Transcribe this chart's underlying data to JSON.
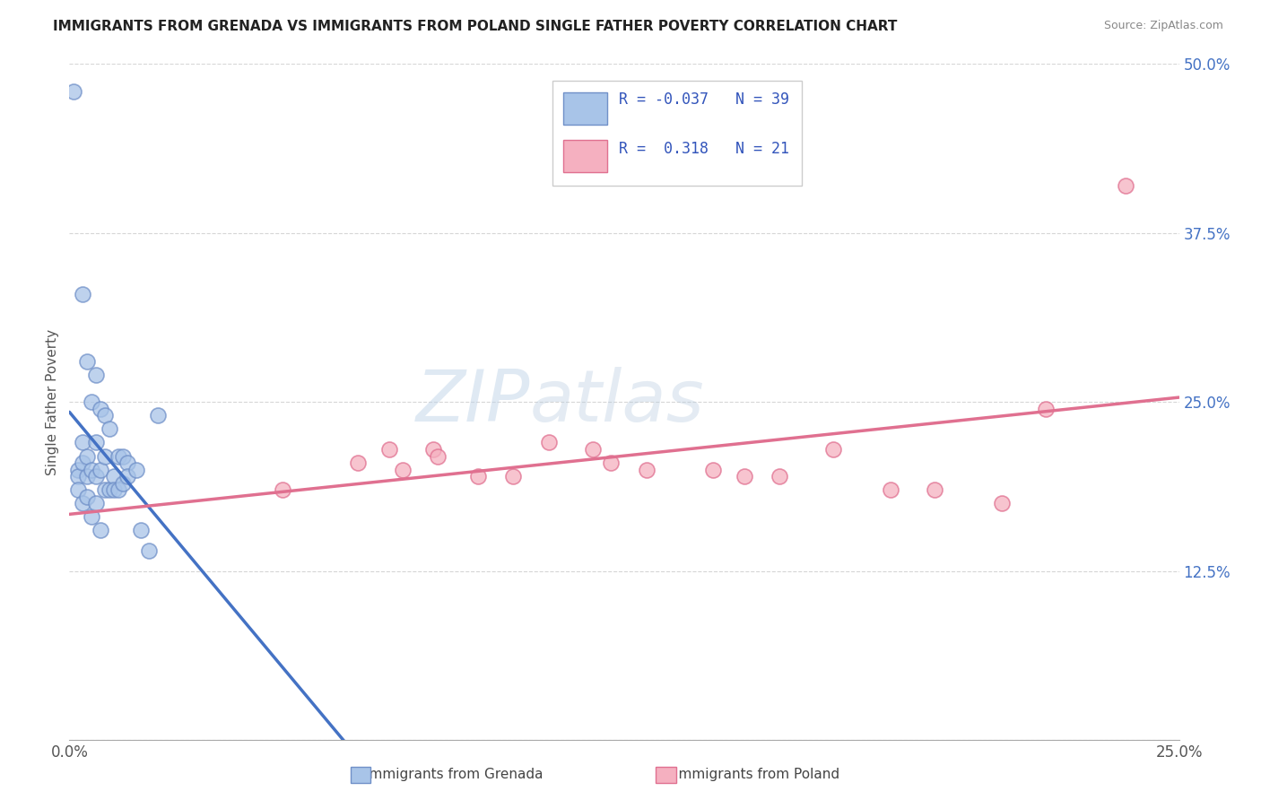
{
  "title": "IMMIGRANTS FROM GRENADA VS IMMIGRANTS FROM POLAND SINGLE FATHER POVERTY CORRELATION CHART",
  "source": "Source: ZipAtlas.com",
  "ylabel": "Single Father Poverty",
  "x_min": 0.0,
  "x_max": 0.25,
  "y_min": 0.0,
  "y_max": 0.5,
  "x_ticks": [
    0.0,
    0.05,
    0.1,
    0.15,
    0.2,
    0.25
  ],
  "x_tick_labels": [
    "0.0%",
    "",
    "",
    "",
    "",
    "25.0%"
  ],
  "y_ticks": [
    0.0,
    0.125,
    0.25,
    0.375,
    0.5
  ],
  "y_tick_labels": [
    "",
    "12.5%",
    "25.0%",
    "37.5%",
    "50.0%"
  ],
  "grenada_R": -0.037,
  "grenada_N": 39,
  "poland_R": 0.318,
  "poland_N": 21,
  "grenada_color": "#a8c4e8",
  "grenada_edge_color": "#7090c8",
  "poland_color": "#f5b0c0",
  "poland_edge_color": "#e07090",
  "grenada_line_color": "#4472c4",
  "poland_line_color": "#e07090",
  "watermark_zip": "ZIP",
  "watermark_atlas": "atlas",
  "grenada_x": [
    0.001,
    0.002,
    0.002,
    0.002,
    0.003,
    0.003,
    0.003,
    0.003,
    0.004,
    0.004,
    0.004,
    0.004,
    0.005,
    0.005,
    0.005,
    0.006,
    0.006,
    0.006,
    0.006,
    0.007,
    0.007,
    0.007,
    0.008,
    0.008,
    0.008,
    0.009,
    0.009,
    0.01,
    0.01,
    0.011,
    0.011,
    0.012,
    0.012,
    0.013,
    0.013,
    0.015,
    0.016,
    0.018,
    0.02
  ],
  "grenada_y": [
    0.48,
    0.2,
    0.195,
    0.185,
    0.33,
    0.22,
    0.205,
    0.175,
    0.28,
    0.21,
    0.195,
    0.18,
    0.25,
    0.2,
    0.165,
    0.27,
    0.22,
    0.195,
    0.175,
    0.245,
    0.2,
    0.155,
    0.24,
    0.21,
    0.185,
    0.23,
    0.185,
    0.195,
    0.185,
    0.21,
    0.185,
    0.21,
    0.19,
    0.205,
    0.195,
    0.2,
    0.155,
    0.14,
    0.24
  ],
  "poland_x": [
    0.048,
    0.065,
    0.072,
    0.075,
    0.082,
    0.083,
    0.092,
    0.1,
    0.108,
    0.118,
    0.122,
    0.13,
    0.145,
    0.152,
    0.16,
    0.172,
    0.185,
    0.195,
    0.21,
    0.22,
    0.238
  ],
  "poland_y": [
    0.185,
    0.205,
    0.215,
    0.2,
    0.215,
    0.21,
    0.195,
    0.195,
    0.22,
    0.215,
    0.205,
    0.2,
    0.2,
    0.195,
    0.195,
    0.215,
    0.185,
    0.185,
    0.175,
    0.245,
    0.41
  ],
  "grenada_line_solid_end": 0.13,
  "poland_line_start": 0.0
}
